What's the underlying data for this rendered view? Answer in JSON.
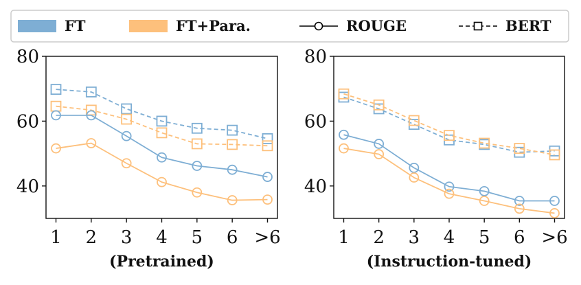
{
  "legend": {
    "items": [
      {
        "label": "FT",
        "kind": "patch",
        "color": "#7eaed4"
      },
      {
        "label": "FT+Para.",
        "kind": "patch",
        "color": "#fdc07c"
      },
      {
        "label": "ROUGE",
        "kind": "solid-circle",
        "color": "#000000"
      },
      {
        "label": "BERT",
        "kind": "dashed-square",
        "color": "#000000"
      }
    ]
  },
  "chart_data": [
    {
      "type": "line",
      "title": "",
      "xlabel": "(Pretrained)",
      "ylabel": "",
      "categories": [
        "1",
        "2",
        "3",
        "4",
        "5",
        "6",
        ">6"
      ],
      "ylim": [
        30,
        80
      ],
      "yticks": [
        40,
        60,
        80
      ],
      "grid": false,
      "series": [
        {
          "name": "FT",
          "metric": "BERT",
          "color": "#7eaed4",
          "marker": "square",
          "dash": true,
          "values": [
            69.8,
            69.0,
            63.8,
            60.0,
            57.8,
            57.2,
            54.6
          ]
        },
        {
          "name": "FT+Para.",
          "metric": "BERT",
          "color": "#fdc07c",
          "marker": "square",
          "dash": true,
          "values": [
            64.6,
            63.4,
            60.6,
            56.4,
            53.0,
            52.8,
            52.4
          ]
        },
        {
          "name": "FT",
          "metric": "ROUGE",
          "color": "#7eaed4",
          "marker": "circle",
          "dash": false,
          "values": [
            61.8,
            61.8,
            55.4,
            48.8,
            46.2,
            45.0,
            42.8
          ]
        },
        {
          "name": "FT+Para.",
          "metric": "ROUGE",
          "color": "#fdc07c",
          "marker": "circle",
          "dash": false,
          "values": [
            51.6,
            53.2,
            47.0,
            41.2,
            38.0,
            35.6,
            35.8
          ]
        }
      ]
    },
    {
      "type": "line",
      "title": "",
      "xlabel": "(Instruction-tuned)",
      "ylabel": "",
      "categories": [
        "1",
        "2",
        "3",
        "4",
        "5",
        "6",
        ">6"
      ],
      "ylim": [
        30,
        80
      ],
      "yticks": [
        40,
        60,
        80
      ],
      "grid": false,
      "series": [
        {
          "name": "FT",
          "metric": "BERT",
          "color": "#7eaed4",
          "marker": "square",
          "dash": true,
          "values": [
            67.4,
            63.8,
            59.0,
            54.2,
            52.8,
            50.4,
            50.8
          ]
        },
        {
          "name": "FT+Para.",
          "metric": "BERT",
          "color": "#fdc07c",
          "marker": "square",
          "dash": true,
          "values": [
            68.4,
            65.0,
            60.2,
            55.6,
            53.2,
            51.6,
            49.6
          ]
        },
        {
          "name": "FT",
          "metric": "ROUGE",
          "color": "#7eaed4",
          "marker": "circle",
          "dash": false,
          "values": [
            55.8,
            53.0,
            45.6,
            39.8,
            38.4,
            35.4,
            35.4
          ]
        },
        {
          "name": "FT+Para.",
          "metric": "ROUGE",
          "color": "#fdc07c",
          "marker": "circle",
          "dash": false,
          "values": [
            51.6,
            49.8,
            42.6,
            37.6,
            35.4,
            33.0,
            31.6
          ]
        }
      ]
    }
  ]
}
